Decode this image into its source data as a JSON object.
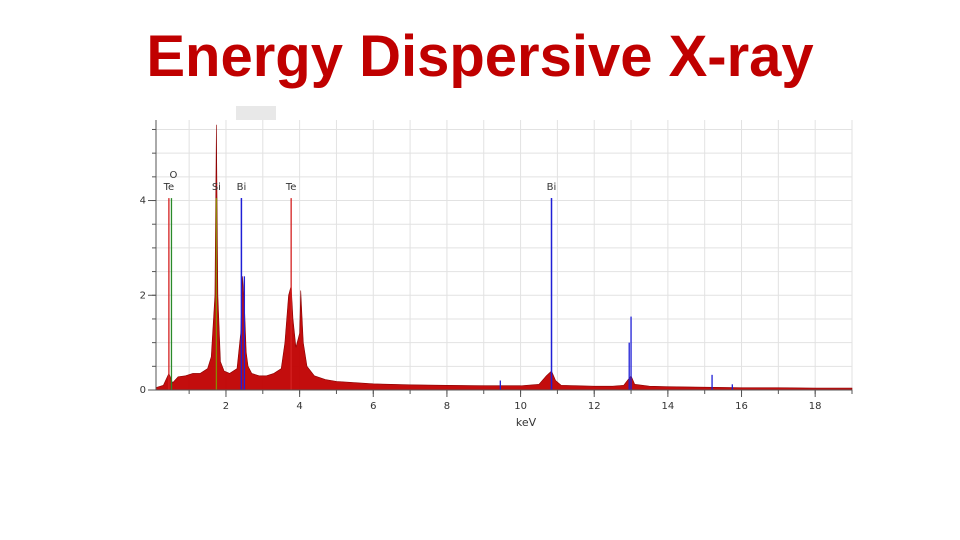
{
  "slide": {
    "title": "Energy Dispersive X-ray"
  },
  "chart_data": {
    "type": "line",
    "xlabel": "keV",
    "ylabel": "",
    "xlim": [
      0.1,
      19
    ],
    "ylim": [
      0,
      5.7
    ],
    "x_ticks": [
      2,
      4,
      6,
      8,
      10,
      12,
      14,
      16,
      18
    ],
    "y_ticks": [
      0,
      2,
      4
    ],
    "grid": true,
    "colors": {
      "spectrum": "#c00000",
      "bi_marker": "#1f1fd6",
      "te_marker": "#d42020",
      "o_marker": "#2a8a2a",
      "si_marker": "#8a8a00"
    },
    "element_markers": [
      {
        "label": "O",
        "energy": 0.52,
        "height": 4.05,
        "element": "O"
      },
      {
        "label": "Te",
        "energy": 0.45,
        "height": 4.05,
        "element": "Te"
      },
      {
        "label": "Si",
        "energy": 1.74,
        "height": 4.05,
        "element": "Si"
      },
      {
        "label": "Bi",
        "energy": 2.42,
        "height": 4.05,
        "element": "Bi"
      },
      {
        "label": "Te",
        "energy": 3.77,
        "height": 4.05,
        "element": "Te"
      },
      {
        "label": "Bi",
        "energy": 10.84,
        "height": 4.05,
        "element": "Bi"
      }
    ],
    "series": [
      {
        "x": [
          0.1,
          0.3,
          0.45,
          0.5,
          0.55,
          0.7,
          0.9,
          1.1,
          1.3,
          1.5,
          1.6,
          1.7,
          1.74,
          1.78,
          1.85,
          1.95,
          2.1,
          2.3,
          2.4,
          2.45,
          2.5,
          2.55,
          2.6,
          2.7,
          2.9,
          3.1,
          3.3,
          3.5,
          3.6,
          3.7,
          3.77,
          3.82,
          3.9,
          4.0,
          4.03,
          4.1,
          4.2,
          4.4,
          4.7,
          5.0,
          6.0,
          7.0,
          8.0,
          9.0,
          10.0,
          10.5,
          10.7,
          10.84,
          10.95,
          11.1,
          11.5,
          12.0,
          12.5,
          12.8,
          12.9,
          13.0,
          13.1,
          13.5,
          14.0,
          15.0,
          16.0,
          17.0,
          18.0,
          19.0
        ],
        "y": [
          0.05,
          0.1,
          0.35,
          0.25,
          0.15,
          0.28,
          0.3,
          0.35,
          0.35,
          0.45,
          0.7,
          2.0,
          5.6,
          2.0,
          0.6,
          0.4,
          0.35,
          0.45,
          1.2,
          2.4,
          1.8,
          0.8,
          0.5,
          0.35,
          0.3,
          0.3,
          0.35,
          0.45,
          1.0,
          2.0,
          2.2,
          1.5,
          0.9,
          1.2,
          2.1,
          1.0,
          0.5,
          0.3,
          0.22,
          0.18,
          0.13,
          0.11,
          0.1,
          0.09,
          0.09,
          0.12,
          0.3,
          0.4,
          0.2,
          0.1,
          0.09,
          0.08,
          0.08,
          0.1,
          0.2,
          0.3,
          0.12,
          0.08,
          0.07,
          0.06,
          0.05,
          0.05,
          0.04,
          0.04
        ]
      },
      {
        "x": [
          2.42,
          2.5,
          9.45,
          10.84,
          12.95,
          13.0,
          15.2,
          15.75
        ],
        "y": [
          4.05,
          2.4,
          0.2,
          4.05,
          1.0,
          1.55,
          0.32,
          0.12
        ]
      }
    ]
  }
}
